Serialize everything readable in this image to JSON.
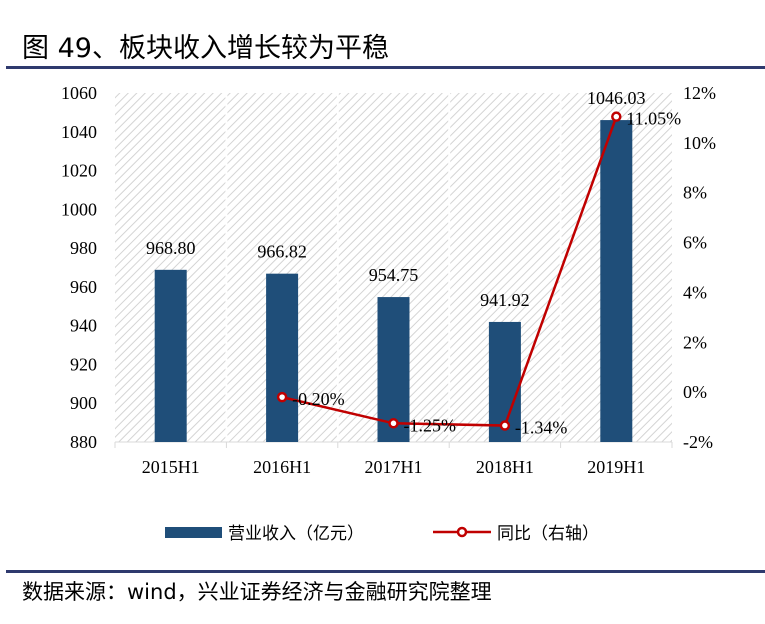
{
  "title": "图 49、板块收入增长较为平稳",
  "source": "数据来源：wind，兴业证券经济与金融研究院整理",
  "colors": {
    "bar": "#1f4e79",
    "line": "#c00000",
    "rule": "#2f3a6e"
  },
  "chart_data": {
    "type": "bar+line",
    "categories": [
      "2015H1",
      "2016H1",
      "2017H1",
      "2018H1",
      "2019H1"
    ],
    "series": [
      {
        "name": "营业收入（亿元）",
        "type": "bar",
        "axis": "left",
        "values": [
          968.8,
          966.82,
          954.75,
          941.92,
          1046.03
        ],
        "labels": [
          "968.80",
          "966.82",
          "954.75",
          "941.92",
          "1046.03"
        ]
      },
      {
        "name": "同比（右轴）",
        "type": "line",
        "axis": "right",
        "values": [
          null,
          -0.2,
          -1.25,
          -1.34,
          11.05
        ],
        "labels": [
          "",
          "-0.20%",
          "-1.25%",
          "-1.34%",
          "11.05%"
        ]
      }
    ],
    "ylim": [
      880,
      1060
    ],
    "yticks": [
      "880",
      "900",
      "920",
      "940",
      "960",
      "980",
      "1000",
      "1020",
      "1040",
      "1060"
    ],
    "y2lim": [
      -2,
      12
    ],
    "y2ticks": [
      "-2%",
      "0%",
      "2%",
      "4%",
      "6%",
      "8%",
      "10%",
      "12%"
    ],
    "legend": "bottom"
  }
}
